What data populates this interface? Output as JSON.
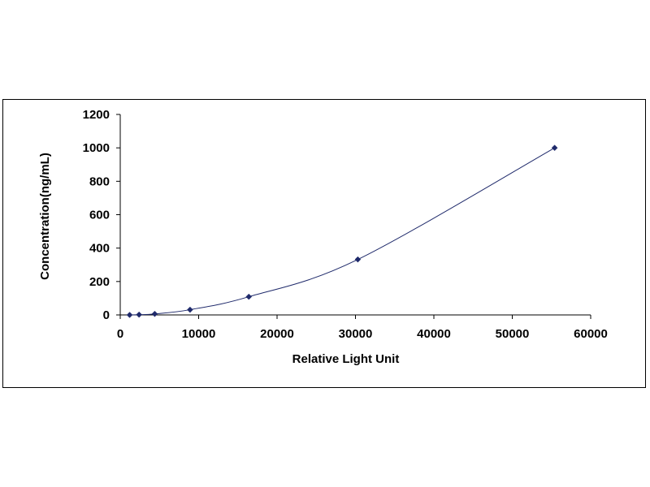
{
  "chart_data": {
    "type": "scatter",
    "title": "",
    "xlabel": "Relative Light Unit",
    "ylabel": "Concentration(ng/mL)",
    "xlim": [
      0,
      60000
    ],
    "ylim": [
      0,
      1200
    ],
    "xticks": [
      0,
      10000,
      20000,
      30000,
      40000,
      50000,
      60000
    ],
    "yticks": [
      0,
      200,
      400,
      600,
      800,
      1000,
      1200
    ],
    "xtick_labels": [
      "0",
      "10000",
      "20000",
      "30000",
      "40000",
      "50000",
      "60000"
    ],
    "ytick_labels": [
      "0",
      "200",
      "400",
      "600",
      "800",
      "1000",
      "1200"
    ],
    "grid": false,
    "legend": false,
    "series": [
      {
        "marker": "diamond",
        "line": "smooth",
        "x": [
          1200,
          2400,
          4400,
          8900,
          16400,
          30300,
          55400
        ],
        "y": [
          0,
          1.56,
          6.25,
          31.25,
          109,
          332,
          1000
        ]
      }
    ]
  },
  "colors": {
    "series": "#1f2a6b",
    "axis": "#000000",
    "frame": "#000000"
  }
}
